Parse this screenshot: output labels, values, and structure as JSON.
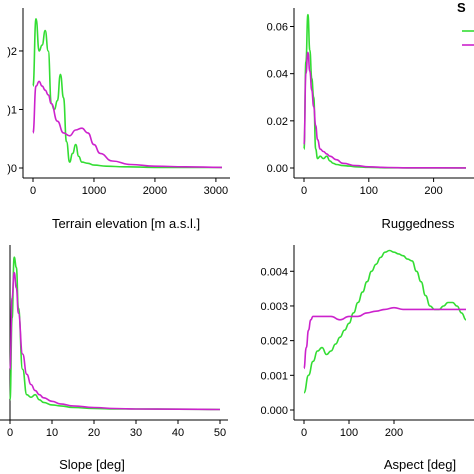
{
  "colors": {
    "series_green": "#33dd33",
    "series_magenta": "#cc22cc",
    "axis": "#000000"
  },
  "legend": {
    "title_fragment": "S"
  },
  "chart_data": [
    {
      "id": "elevation",
      "type": "line",
      "xlabel": "Terrain elevation [m a.s.l.]",
      "ylabel": "",
      "xlim": [
        0,
        3100
      ],
      "ylim": [
        0,
        0.0027
      ],
      "xticks": [
        0,
        1000,
        2000,
        3000
      ],
      "xtick_labels": [
        "0",
        "1000",
        "2000",
        "3000"
      ],
      "yticks": [
        0,
        0.001,
        0.002
      ],
      "ytick_labels": [
        ")0",
        ")1",
        ")2"
      ],
      "series": [
        {
          "color": "series_green",
          "x": [
            0,
            50,
            100,
            150,
            200,
            250,
            300,
            350,
            400,
            450,
            500,
            550,
            600,
            650,
            700,
            750,
            800,
            900,
            1000,
            1200,
            1500,
            2000,
            2500,
            3100
          ],
          "y": [
            0.0014,
            0.00255,
            0.002,
            0.0021,
            0.00235,
            0.002,
            0.0011,
            0.001,
            0.00115,
            0.0016,
            0.0012,
            0.00045,
            0.0001,
            0.00025,
            0.0004,
            0.0002,
            0.0001,
            8e-05,
            5e-05,
            3e-05,
            2e-05,
            1e-05,
            1e-05,
            1e-05
          ]
        },
        {
          "color": "series_magenta",
          "x": [
            0,
            50,
            100,
            150,
            200,
            250,
            300,
            400,
            500,
            600,
            700,
            800,
            900,
            1000,
            1100,
            1300,
            1600,
            2000,
            2500,
            3100
          ],
          "y": [
            0.0006,
            0.0014,
            0.00148,
            0.0014,
            0.00133,
            0.00125,
            0.0011,
            0.0008,
            0.0006,
            0.00055,
            0.00065,
            0.00068,
            0.0006,
            0.0004,
            0.00025,
            0.00012,
            6e-05,
            3e-05,
            2e-05,
            1e-05
          ]
        }
      ]
    },
    {
      "id": "ruggedness",
      "type": "line",
      "xlabel": "Ruggedness",
      "ylabel": "",
      "xlim": [
        0,
        250
      ],
      "ylim": [
        0,
        0.067
      ],
      "xticks": [
        0,
        100,
        200
      ],
      "xtick_labels": [
        "0",
        "100",
        "200"
      ],
      "yticks": [
        0,
        0.02,
        0.04,
        0.06
      ],
      "ytick_labels": [
        "0.00",
        "0.02",
        "0.04",
        "0.06"
      ],
      "series": [
        {
          "color": "series_green",
          "x": [
            0,
            3,
            6,
            9,
            12,
            15,
            18,
            21,
            25,
            30,
            35,
            40,
            45,
            50,
            60,
            70,
            80,
            100,
            130,
            160,
            250
          ],
          "y": [
            0.008,
            0.045,
            0.065,
            0.05,
            0.038,
            0.03,
            0.008,
            0.004,
            0.005,
            0.004,
            0.005,
            0.003,
            0.002,
            0.0015,
            0.001,
            0.0008,
            0.0005,
            0.0003,
            0.0001,
            5e-05,
            5e-05
          ]
        },
        {
          "color": "series_magenta",
          "x": [
            0,
            3,
            6,
            9,
            12,
            15,
            18,
            21,
            25,
            30,
            35,
            40,
            50,
            60,
            80,
            100,
            130,
            160,
            250
          ],
          "y": [
            0.01,
            0.04,
            0.049,
            0.041,
            0.033,
            0.026,
            0.018,
            0.012,
            0.008,
            0.007,
            0.006,
            0.005,
            0.0035,
            0.002,
            0.001,
            0.0005,
            0.0002,
            0.0001,
            5e-05
          ]
        }
      ]
    },
    {
      "id": "slope",
      "type": "line",
      "xlabel": "Slope [deg]",
      "ylabel": "",
      "xlim": [
        0,
        50
      ],
      "ylim": [
        0,
        0.32
      ],
      "xticks": [
        0,
        10,
        20,
        30,
        40,
        50
      ],
      "xtick_labels": [
        "0",
        "10",
        "20",
        "30",
        "40",
        "50"
      ],
      "yticks": [],
      "ytick_labels": [],
      "series": [
        {
          "color": "series_green",
          "x": [
            0,
            0.5,
            1,
            1.5,
            2,
            3,
            4,
            5,
            6,
            7,
            8,
            10,
            12,
            15,
            20,
            25,
            30,
            40,
            50
          ],
          "y": [
            0.02,
            0.18,
            0.3,
            0.28,
            0.2,
            0.08,
            0.03,
            0.025,
            0.03,
            0.02,
            0.015,
            0.01,
            0.008,
            0.005,
            0.003,
            0.002,
            0.002,
            0.0015,
            0.001
          ]
        },
        {
          "color": "series_magenta",
          "x": [
            0,
            0.5,
            1,
            1.5,
            2,
            3,
            4,
            5,
            6,
            7,
            8,
            10,
            12,
            15,
            20,
            25,
            30,
            40,
            50
          ],
          "y": [
            0.08,
            0.22,
            0.27,
            0.24,
            0.19,
            0.11,
            0.07,
            0.05,
            0.038,
            0.03,
            0.024,
            0.017,
            0.012,
            0.008,
            0.005,
            0.003,
            0.002,
            0.0015,
            0.001
          ]
        }
      ]
    },
    {
      "id": "aspect",
      "type": "line",
      "xlabel": "Aspect [deg]",
      "ylabel": "",
      "xlim": [
        0,
        360
      ],
      "ylim": [
        0,
        0.0047
      ],
      "xticks": [
        0,
        100,
        200
      ],
      "xtick_labels": [
        "0",
        "100",
        "200"
      ],
      "yticks": [
        0,
        0.001,
        0.002,
        0.003,
        0.004
      ],
      "ytick_labels": [
        "0.000",
        "0.001",
        "0.002",
        "0.003",
        "0.004"
      ],
      "series": [
        {
          "color": "series_green",
          "x": [
            0,
            10,
            20,
            30,
            40,
            50,
            60,
            70,
            80,
            90,
            100,
            110,
            120,
            130,
            140,
            150,
            160,
            170,
            180,
            190,
            200,
            210,
            220,
            230,
            240,
            250,
            260,
            270,
            280,
            290,
            300,
            310,
            320,
            330,
            340,
            350,
            360
          ],
          "y": [
            0.0005,
            0.001,
            0.0014,
            0.0017,
            0.0018,
            0.0016,
            0.0017,
            0.0019,
            0.0021,
            0.0023,
            0.0025,
            0.0028,
            0.0031,
            0.0034,
            0.0037,
            0.004,
            0.0042,
            0.0044,
            0.00455,
            0.0046,
            0.00455,
            0.0045,
            0.00445,
            0.00435,
            0.0043,
            0.004,
            0.0037,
            0.0033,
            0.003,
            0.0029,
            0.0029,
            0.003,
            0.0031,
            0.0031,
            0.003,
            0.0028,
            0.0026
          ]
        },
        {
          "color": "series_magenta",
          "x": [
            0,
            5,
            10,
            15,
            20,
            30,
            40,
            60,
            80,
            100,
            120,
            140,
            160,
            180,
            200,
            220,
            240,
            260,
            280,
            300,
            320,
            340,
            360
          ],
          "y": [
            0.0012,
            0.0018,
            0.0023,
            0.0026,
            0.0027,
            0.0027,
            0.0027,
            0.0027,
            0.0026,
            0.0027,
            0.0027,
            0.0028,
            0.00285,
            0.0029,
            0.00295,
            0.0029,
            0.0029,
            0.0029,
            0.0029,
            0.0029,
            0.0029,
            0.0029,
            0.0029
          ]
        }
      ]
    }
  ]
}
